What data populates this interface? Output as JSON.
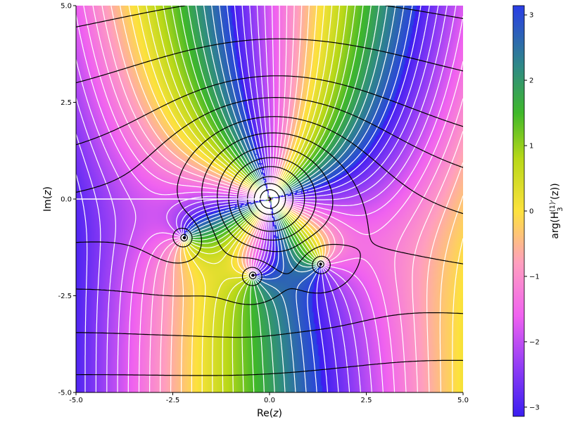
{
  "chart_data": {
    "type": "heatmap",
    "title": "",
    "xlabel": {
      "prefix": "Re(",
      "var": "z",
      "suffix": ")"
    },
    "ylabel": {
      "prefix": "Im(",
      "var": "z",
      "suffix": ")"
    },
    "xlim": [
      -5.0,
      5.0
    ],
    "ylim": [
      -5.0,
      5.0
    ],
    "x_ticks": [
      {
        "value": -5.0,
        "label": "-5.0"
      },
      {
        "value": -2.5,
        "label": "-2.5"
      },
      {
        "value": 0.0,
        "label": "0.0"
      },
      {
        "value": 2.5,
        "label": "2.5"
      },
      {
        "value": 5.0,
        "label": "5.0"
      }
    ],
    "y_ticks": [
      {
        "value": -5.0,
        "label": "-5.0"
      },
      {
        "value": -2.5,
        "label": "-2.5"
      },
      {
        "value": 0.0,
        "label": "0.0"
      },
      {
        "value": 2.5,
        "label": "2.5"
      },
      {
        "value": 5.0,
        "label": "5.0"
      }
    ],
    "grid": false,
    "field": {
      "function": "H3(1)'(z) derivative of Hankel function of the first kind, order 3",
      "order": 3,
      "branch_cut": {
        "from": [
          -5.0,
          0.0
        ],
        "to": [
          0.0,
          0.0
        ]
      },
      "singularity": [
        0.0,
        0.0
      ],
      "zeros": [
        [
          -2.2,
          -1.0
        ],
        [
          -0.43,
          -1.97
        ],
        [
          1.32,
          -1.68
        ]
      ]
    },
    "colorbar": {
      "label": {
        "prefix": "arg(H",
        "sub": "3",
        "sup": "(1)",
        "suffix": "′(z))"
      },
      "range": [
        -3.14159,
        3.14159
      ],
      "ticks": [
        {
          "value": 3,
          "label": "3"
        },
        {
          "value": 2,
          "label": "2"
        },
        {
          "value": 1,
          "label": "1"
        },
        {
          "value": 0,
          "label": "0"
        },
        {
          "value": -1,
          "label": "−1"
        },
        {
          "value": -2,
          "label": "−2"
        },
        {
          "value": -3,
          "label": "−3"
        }
      ],
      "stops": [
        {
          "value": -3.14159,
          "color": "#3a1ef0"
        },
        {
          "value": -2.4,
          "color": "#8f3cf5"
        },
        {
          "value": -1.6,
          "color": "#f062f0"
        },
        {
          "value": -0.8,
          "color": "#ff9fbf"
        },
        {
          "value": 0.0,
          "color": "#fde23d"
        },
        {
          "value": 0.8,
          "color": "#b8d818"
        },
        {
          "value": 1.5,
          "color": "#3fb82a"
        },
        {
          "value": 2.2,
          "color": "#2f8a85"
        },
        {
          "value": 3.14159,
          "color": "#2a3de6"
        }
      ]
    },
    "series": [
      {
        "style": "white",
        "kind": "phase contours (arg level sets)"
      },
      {
        "style": "black",
        "kind": "modulus contours (|f| level sets)"
      }
    ]
  }
}
